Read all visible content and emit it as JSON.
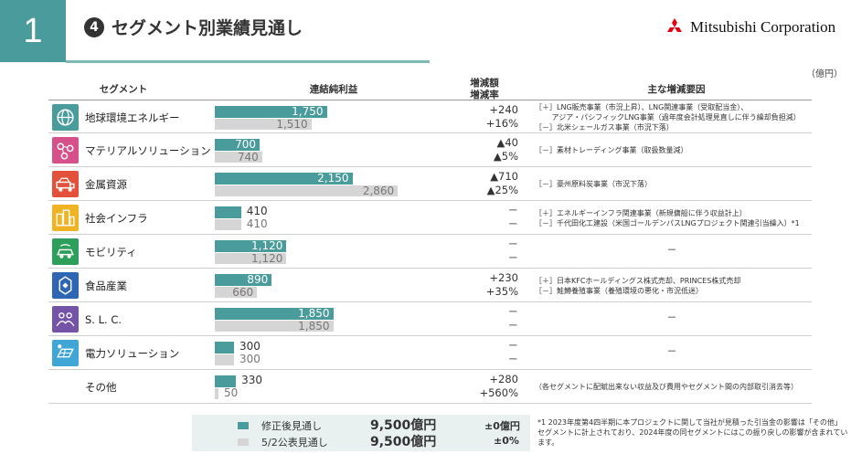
{
  "page_number": "1",
  "title": {
    "badge": "❹",
    "text": "セグメント別業績見通し"
  },
  "logo": "Mitsubishi Corporation",
  "unit": "（億円）",
  "headers": {
    "segment": "セグメント",
    "profit": "連結純利益",
    "change_1": "増減額",
    "change_2": "増減率",
    "factors": "主な増減要因"
  },
  "colors": {
    "revised": "#4a9b9b",
    "announced": "#d5d5d5",
    "brand_red": "#e60012"
  },
  "rows": [
    {
      "name": "地球環境エネルギー",
      "icon": "globe-icon",
      "icon_color": "#4a9b9b",
      "revised": 1750,
      "revised_label": "1,750",
      "announced": 1510,
      "announced_label": "1,510",
      "change_abs": "+240",
      "change_pct": "+16%",
      "factors": [
        "［＋］LNG販売事業（市況上昇）、LNG関連事業（受取配当金）、",
        "　　 アジア・パシフィックLNG事業（過年度会計処理見直しに伴う繰却負担減）",
        "［－］北米シェールガス事業（市況下落）"
      ]
    },
    {
      "name": "マテリアルソリューション",
      "icon": "molecule-icon",
      "icon_color": "#d6508a",
      "revised": 700,
      "revised_label": "700",
      "announced": 740,
      "announced_label": "740",
      "change_abs": "▲40",
      "change_pct": "▲5%",
      "factors": [
        "［－］素材トレーディング事業（取扱数量減）"
      ]
    },
    {
      "name": "金属資源",
      "icon": "mining-truck-icon",
      "icon_color": "#e4513b",
      "revised": 2150,
      "revised_label": "2,150",
      "announced": 2860,
      "announced_label": "2,860",
      "change_abs": "▲710",
      "change_pct": "▲25%",
      "factors": [
        "［－］豪州原料炭事業（市況下落）"
      ]
    },
    {
      "name": "社会インフラ",
      "icon": "city-icon",
      "icon_color": "#f0b323",
      "revised": 410,
      "revised_label": "410",
      "announced": 410,
      "announced_label": "410",
      "change_abs": "－",
      "change_pct": "－",
      "factors": [
        "［＋］エネルギーインフラ関連事業（新規傭船に伴う収益計上）",
        "［－］千代田化工建設（米国ゴールデンパスLNGプロジェクト関連引当繰入）*1"
      ]
    },
    {
      "name": "モビリティ",
      "icon": "car-icon",
      "icon_color": "#2e9e5b",
      "revised": 1120,
      "revised_label": "1,120",
      "announced": 1120,
      "announced_label": "1,120",
      "change_abs": "－",
      "change_pct": "－",
      "factors": [
        "－"
      ]
    },
    {
      "name": "食品産業",
      "icon": "food-icon",
      "icon_color": "#2f66b3",
      "revised": 890,
      "revised_label": "890",
      "announced": 660,
      "announced_label": "660",
      "change_abs": "+230",
      "change_pct": "+35%",
      "factors": [
        "［＋］日本KFCホールディングス株式売却、PRINCES株式売却",
        "［－］鮭鱒養殖事業（養殖環境の悪化・市況低迷）"
      ]
    },
    {
      "name": "S. L. C.",
      "icon": "people-icon",
      "icon_color": "#7454a6",
      "revised": 1850,
      "revised_label": "1,850",
      "announced": 1850,
      "announced_label": "1,850",
      "change_abs": "－",
      "change_pct": "－",
      "factors": [
        "－"
      ]
    },
    {
      "name": "電力ソリューション",
      "icon": "solar-panel-icon",
      "icon_color": "#3fa6d6",
      "revised": 300,
      "revised_label": "300",
      "announced": 300,
      "announced_label": "300",
      "change_abs": "－",
      "change_pct": "－",
      "factors": [
        "－"
      ]
    },
    {
      "name": "その他",
      "icon": "",
      "icon_color": "",
      "revised": 330,
      "revised_label": "330",
      "announced": 50,
      "announced_label": "50",
      "change_abs": "+280",
      "change_pct": "+560%",
      "factors": [
        "（各セグメントに配賦出来ない収益及び費用やセグメント間の内部取引消去等）"
      ]
    }
  ],
  "legend": {
    "revised_label": "修正後見通し",
    "revised_total": "9,500億円",
    "revised_change": "±0億円",
    "announced_label": "5/2公表見通し",
    "announced_total": "9,500億円",
    "announced_change": "±0%"
  },
  "footnote": "*1  2023年度第4四半期に本プロジェクトに関して当社が見積った引当金の影響は「その他」セグメントに計上されており、2024年度の同セグメントにはこの振り戻しの影響が含まれています。"
}
